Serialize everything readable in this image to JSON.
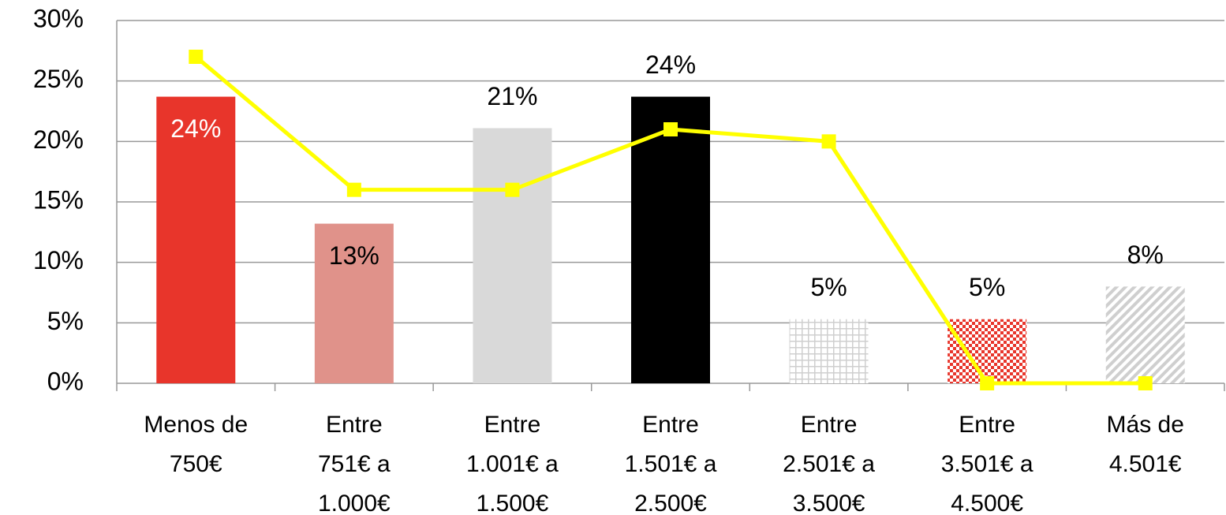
{
  "chart_data": {
    "type": "bar",
    "categories": [
      [
        "Menos de",
        "750€"
      ],
      [
        "Entre",
        "751€ a",
        "1.000€"
      ],
      [
        "Entre",
        "1.001€ a",
        "1.500€"
      ],
      [
        "Entre",
        "1.501€ a",
        "2.500€"
      ],
      [
        "Entre",
        "2.501€ a",
        "3.500€"
      ],
      [
        "Entre",
        "3.501€ a",
        "4.500€"
      ],
      [
        "Más de",
        "4.501€"
      ]
    ],
    "values": [
      23.7,
      13.2,
      21.1,
      23.7,
      5.3,
      5.3,
      8.0
    ],
    "value_labels": [
      "24%",
      "13%",
      "21%",
      "24%",
      "5%",
      "5%",
      "8%"
    ],
    "colors": [
      "#e8352b",
      "#e0928a",
      "#d9d9d9",
      "#000000",
      "#d0d0d0",
      "#e8352b",
      "#c8c8c8"
    ],
    "patterns": [
      null,
      null,
      null,
      null,
      "grid",
      "checker",
      "diagonal"
    ],
    "series": [
      {
        "type": "line",
        "color": "#ffff00",
        "values": [
          27,
          16,
          16,
          21,
          20,
          0,
          0
        ]
      }
    ],
    "ylim": [
      0,
      30
    ],
    "yticks": [
      {
        "value": 0,
        "label": "0%"
      },
      {
        "value": 5,
        "label": "5%"
      },
      {
        "value": 10,
        "label": "10%"
      },
      {
        "value": 15,
        "label": "15%"
      },
      {
        "value": 20,
        "label": "20%"
      },
      {
        "value": 25,
        "label": "25%"
      },
      {
        "value": 30,
        "label": "30%"
      }
    ],
    "grid": true
  }
}
